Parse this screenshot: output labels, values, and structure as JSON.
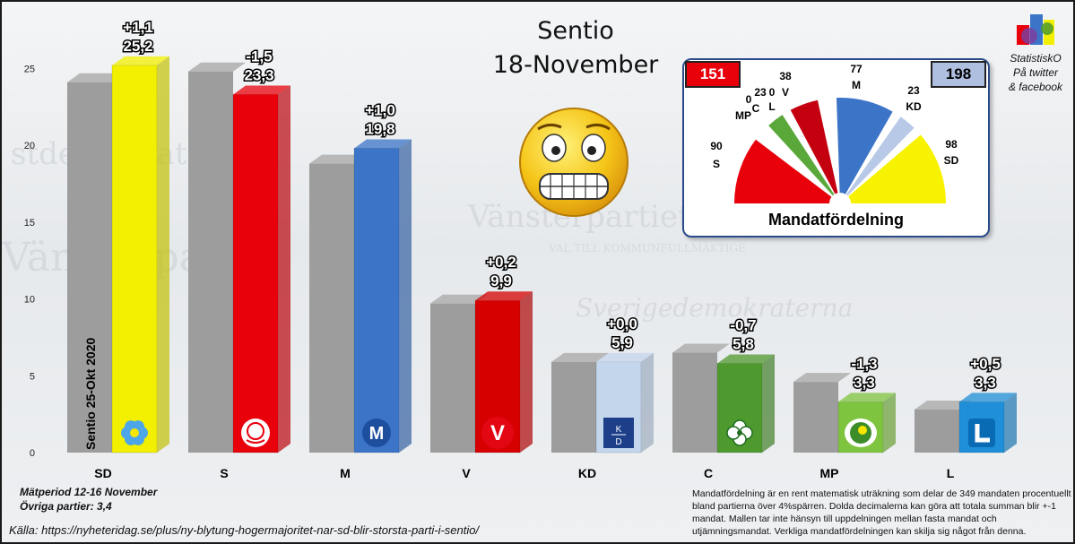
{
  "header": {
    "title": "Sentio",
    "date": "18-November"
  },
  "brand": {
    "line1": "StatistiskO",
    "line2": "På twitter",
    "line3": "& facebook"
  },
  "chart_data": {
    "type": "bar",
    "categories": [
      "SD",
      "S",
      "M",
      "V",
      "KD",
      "C",
      "MP",
      "L"
    ],
    "series": [
      {
        "name": "Sentio 25-Okt 2020",
        "values": [
          24.1,
          24.8,
          18.8,
          9.7,
          5.9,
          6.5,
          4.6,
          2.8
        ]
      },
      {
        "values": [
          25.2,
          23.3,
          19.8,
          9.9,
          5.9,
          5.8,
          3.3,
          3.3
        ]
      }
    ],
    "value_labels": [
      "25,2",
      "23,3",
      "19,8",
      "9,9",
      "5,9",
      "5,8",
      "3,3",
      "3,3"
    ],
    "change_labels": [
      "+1,1",
      "-1,5",
      "+1,0",
      "+0,2",
      "+0,0",
      "-0,7",
      "-1,3",
      "+0,5"
    ],
    "party_colors": [
      "#f2f000",
      "#e8000b",
      "#3c74c8",
      "#d60000",
      "#c3d6ec",
      "#4f9a2e",
      "#7fc43f",
      "#1e8fd8"
    ],
    "party_logo_icons": [
      "sd-flower-icon",
      "s-rose-icon",
      "m-logo-icon",
      "v-logo-icon",
      "kd-logo-icon",
      "c-clover-icon",
      "mp-sun-icon",
      "l-logo-icon"
    ],
    "previous_color": "#9d9d9d",
    "yticks": [
      "0",
      "5",
      "10",
      "15",
      "20",
      "25"
    ],
    "ylim": [
      0,
      27
    ],
    "grid": false,
    "legend": "none"
  },
  "seats": {
    "left_block": "151",
    "right_block": "198",
    "title": "Mandatfördelning",
    "order": [
      "S",
      "MP",
      "C",
      "V",
      "L",
      "M",
      "KD",
      "SD"
    ],
    "values": [
      90,
      0,
      23,
      38,
      0,
      77,
      23,
      98
    ],
    "labels": [
      {
        "seats": "90",
        "party": "S"
      },
      {
        "seats": "0",
        "party": "MP"
      },
      {
        "seats": "23",
        "party": "C"
      },
      {
        "seats": "38",
        "party": "V"
      },
      {
        "seats": "0",
        "party": "L"
      },
      {
        "seats": "77",
        "party": "M"
      },
      {
        "seats": "23",
        "party": "KD"
      },
      {
        "seats": "98",
        "party": "SD"
      }
    ],
    "colors": [
      "#e8000b",
      "#7fc43f",
      "#5aa83a",
      "#c40010",
      "#1e8fd8",
      "#3c74c8",
      "#b8c9e8",
      "#f7f200"
    ]
  },
  "footer": {
    "period": "Mätperiod 12-16 November",
    "other": "Övriga partier: 3,4",
    "source": "Källa: https://nyheteridag.se/plus/ny-blytung-hogermajoritet-nar-sd-blir-storsta-parti-i-sentio/",
    "methodology": "Mandatfördelning är en rent matematisk uträkning som delar de 349  mandaten procentuellt bland partierna över 4%spärren. Dolda decimalerna kan göra att totala summan blir +-1 mandat. Mallen tar inte hänsyn till uppdelningen mellan fasta mandat och utjämningsmandat.  Verkliga mandatfördelningen kan skilja sig något från denna."
  },
  "background_text": [
    "stdemokraterna",
    "Vänsterpartiet",
    "Sverigedemokraterna",
    "VAL TILL KOMMUNFULLMÄKTIGE",
    "Vänsterpartie"
  ]
}
